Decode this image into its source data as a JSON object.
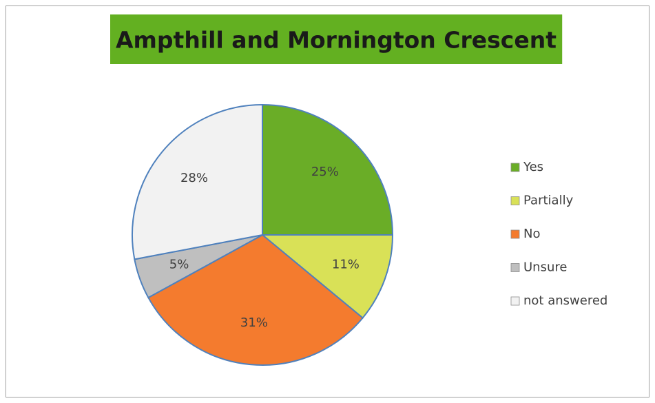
{
  "chart_data": {
    "type": "pie",
    "title": "Ampthill and Mornington Crescent",
    "categories": [
      "Yes",
      "Partially",
      "No",
      "Unsure",
      "not answered"
    ],
    "values": [
      25,
      11,
      31,
      5,
      28
    ],
    "value_labels": [
      "25%",
      "11%",
      "31%",
      "5%",
      "28%"
    ],
    "colors": [
      "#6aad27",
      "#d9e157",
      "#f47b2e",
      "#bfbfbf",
      "#f2f2f2"
    ],
    "title_background": "#63b021",
    "legend": "right"
  }
}
